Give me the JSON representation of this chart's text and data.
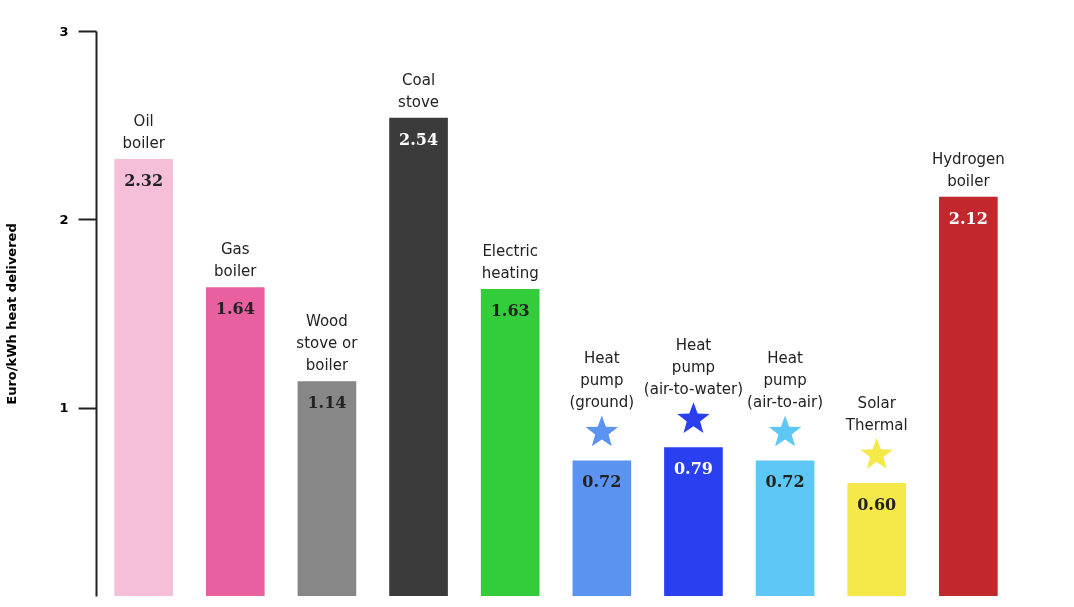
{
  "chart_data": {
    "type": "bar",
    "ylabel": "Euro/kWh heat delivered",
    "categories": [
      "Oil boiler",
      "Gas boiler",
      "Wood stove or boiler",
      "Coal stove",
      "Electric heating",
      "Heat pump (ground)",
      "Heat pump (air-to-water)",
      "Heat pump (air-to-air)",
      "Solar Thermal",
      "Hydrogen boiler"
    ],
    "values": [
      2.32,
      1.64,
      1.14,
      2.54,
      1.63,
      0.72,
      0.79,
      0.72,
      0.6,
      2.12
    ],
    "value_labels": [
      "2.32",
      "1.64",
      "1.14",
      "2.54",
      "1.63",
      "0.72",
      "0.79",
      "0.72",
      "0.60",
      "2.12"
    ],
    "colors": [
      "#f5bfd9",
      "#e8609f",
      "#878787",
      "#3b3b3b",
      "#33cc3a",
      "#5b94f0",
      "#2a3ff0",
      "#5dc8f5",
      "#f5e94a",
      "#c1272d"
    ],
    "ylim": [
      0,
      3
    ],
    "yticks": [
      1,
      2,
      3
    ],
    "tick_labels": "y",
    "grid": false
  }
}
